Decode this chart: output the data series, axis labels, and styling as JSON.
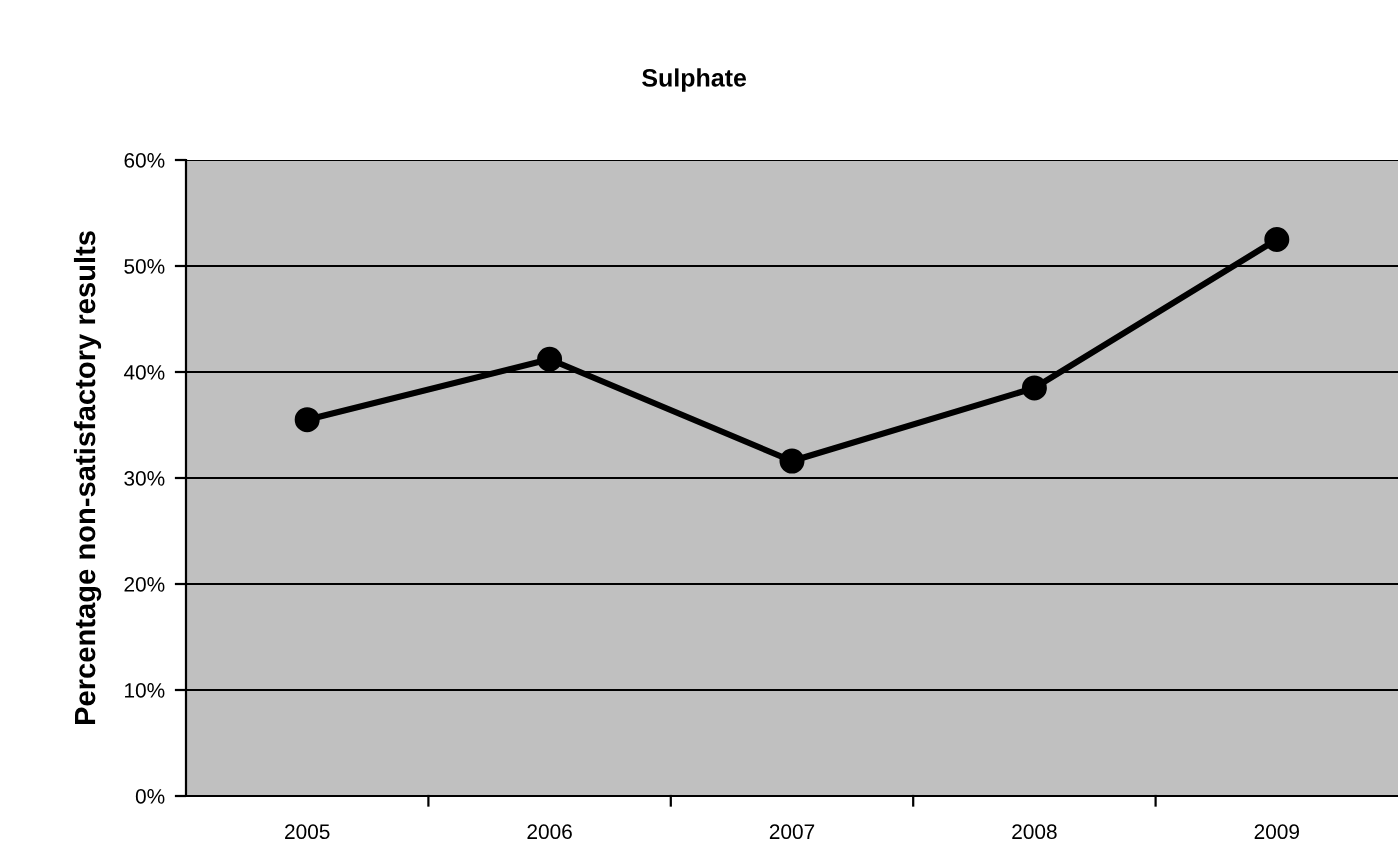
{
  "chart_data": {
    "type": "line",
    "title": "Sulphate",
    "ylabel": "Percentage non-satisfactory results",
    "categories": [
      "2005",
      "2006",
      "2007",
      "2008",
      "2009"
    ],
    "series": [
      {
        "color": "#000000",
        "values": [
          35.5,
          41.2,
          31.6,
          38.5,
          52.5
        ]
      }
    ],
    "ylim": [
      0,
      60
    ],
    "yticks": [
      {
        "value": 0,
        "label": "0%"
      },
      {
        "value": 10,
        "label": "10%"
      },
      {
        "value": 20,
        "label": "20%"
      },
      {
        "value": 30,
        "label": "30%"
      },
      {
        "value": 40,
        "label": "40%"
      },
      {
        "value": 50,
        "label": "50%"
      },
      {
        "value": 60,
        "label": "60%"
      }
    ],
    "grid": "y",
    "marker": "circle",
    "line_style": "solid"
  }
}
